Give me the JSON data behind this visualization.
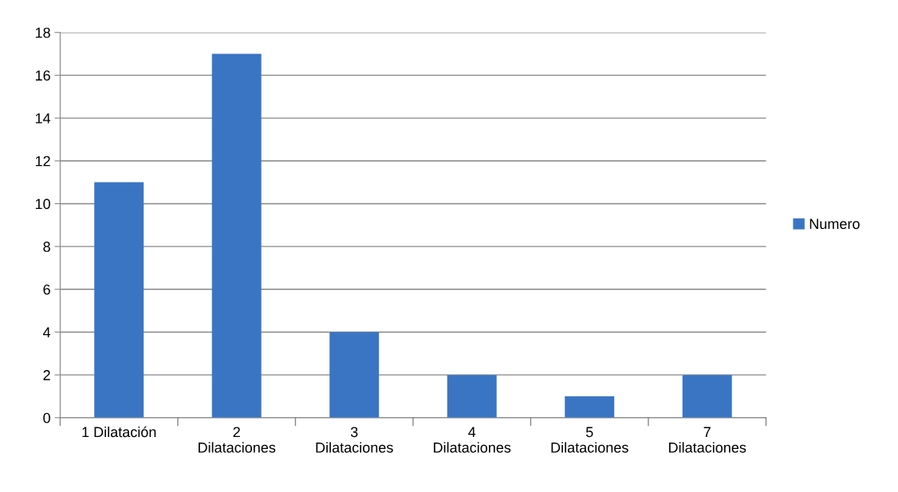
{
  "chart_data": {
    "type": "bar",
    "categories": [
      "1 Dilatación",
      "2 Dilataciones",
      "3 Dilataciones",
      "4 Dilataciones",
      "5 Dilataciones",
      "7 Dilataciones"
    ],
    "series": [
      {
        "name": "Numero",
        "color": "#3a75c4",
        "values": [
          11,
          17,
          4,
          2,
          1,
          2
        ]
      }
    ],
    "ylim": [
      0,
      18
    ],
    "yticks": [
      0,
      2,
      4,
      6,
      8,
      10,
      12,
      14,
      16,
      18
    ],
    "grid": "y",
    "legend": "right"
  }
}
